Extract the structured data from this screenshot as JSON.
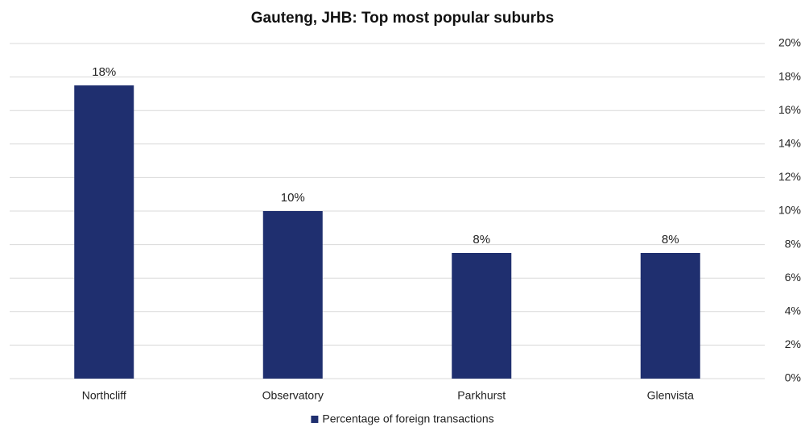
{
  "chart_data": {
    "type": "bar",
    "title": "Gauteng, JHB: Top most popular suburbs",
    "categories": [
      "Northcliff",
      "Observatory",
      "Parkhurst",
      "Glenvista"
    ],
    "series": [
      {
        "name": "Percentage of foreign transactions",
        "color": "#1f2f6f",
        "values": [
          17.5,
          10,
          7.5,
          7.5
        ],
        "value_labels": [
          "18%",
          "10%",
          "8%",
          "8%"
        ]
      }
    ],
    "ylim": [
      0,
      20
    ],
    "yticks": [
      {
        "value": 0,
        "label": "0%"
      },
      {
        "value": 2,
        "label": "2%"
      },
      {
        "value": 4,
        "label": "4%"
      },
      {
        "value": 6,
        "label": "6%"
      },
      {
        "value": 8,
        "label": "8%"
      },
      {
        "value": 10,
        "label": "10%"
      },
      {
        "value": 12,
        "label": "12%"
      },
      {
        "value": 14,
        "label": "14%"
      },
      {
        "value": 16,
        "label": "16%"
      },
      {
        "value": 18,
        "label": "18%"
      },
      {
        "value": 20,
        "label": "20%"
      }
    ],
    "y_axis_side": "right",
    "grid": true,
    "legend": "bottom"
  }
}
